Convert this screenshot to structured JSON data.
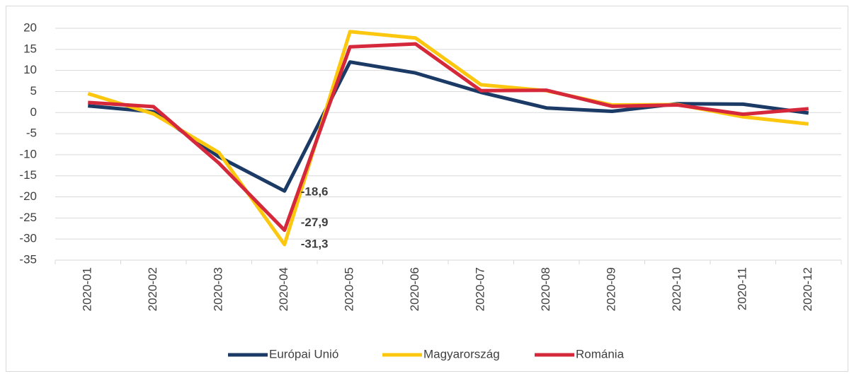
{
  "chart_data": {
    "type": "line",
    "categories": [
      "2020-01",
      "2020-02",
      "2020-03",
      "2020-04",
      "2020-05",
      "2020-06",
      "2020-07",
      "2020-08",
      "2020-09",
      "2020-10",
      "2020-11",
      "2020-12"
    ],
    "series": [
      {
        "name": "Európai Unió",
        "color": "#1b3a66",
        "values": [
          1.6,
          0.2,
          -10.5,
          -18.6,
          12,
          9.4,
          4.8,
          1.1,
          0.3,
          2.1,
          2.0,
          -0.1
        ],
        "value_labels": [
          null,
          null,
          null,
          "-18,6",
          null,
          null,
          null,
          null,
          null,
          null,
          null,
          null
        ]
      },
      {
        "name": "Magyarország",
        "color": "#fcc70f",
        "values": [
          4.5,
          -0.3,
          -9.5,
          -31.3,
          19.2,
          17.7,
          6.6,
          5.2,
          1.8,
          1.9,
          -1.0,
          -2.7
        ],
        "value_labels": [
          null,
          null,
          null,
          "-31,3",
          null,
          null,
          null,
          null,
          null,
          null,
          null,
          null
        ]
      },
      {
        "name": "Románia",
        "color": "#d5293b",
        "values": [
          2.4,
          1.4,
          -12,
          -27.9,
          15.6,
          16.3,
          5.2,
          5.3,
          1.5,
          1.8,
          -0.4,
          0.9
        ],
        "value_labels": [
          null,
          null,
          null,
          "-27,9",
          null,
          null,
          null,
          null,
          null,
          null,
          null,
          null
        ]
      }
    ],
    "ylim": [
      -35,
      20
    ],
    "yticks": [
      20,
      15,
      10,
      5,
      0,
      -5,
      -10,
      -15,
      -20,
      -25,
      -30,
      -35
    ],
    "grid": true,
    "legend": "bottom"
  }
}
